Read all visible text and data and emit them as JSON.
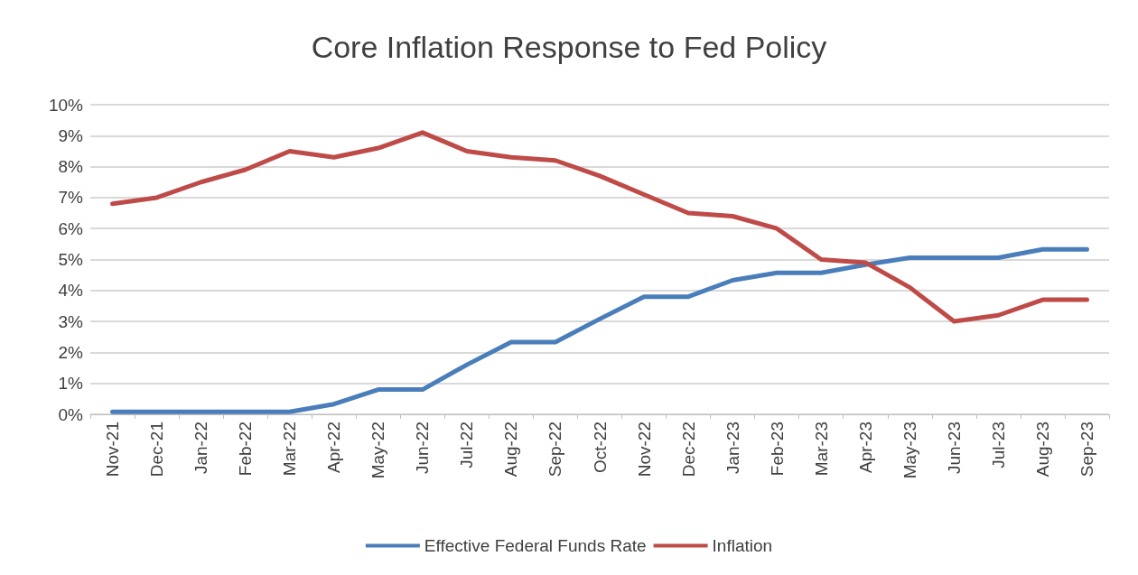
{
  "chart_data": {
    "type": "line",
    "title": "Core Inflation Response to Fed Policy",
    "categories": [
      "Nov-21",
      "Dec-21",
      "Jan-22",
      "Feb-22",
      "Mar-22",
      "Apr-22",
      "May-22",
      "Jun-22",
      "Jul-22",
      "Aug-22",
      "Sep-22",
      "Oct-22",
      "Nov-22",
      "Dec-22",
      "Jan-23",
      "Feb-23",
      "Mar-23",
      "Apr-23",
      "May-23",
      "Jun-23",
      "Jul-23",
      "Aug-23",
      "Sep-23"
    ],
    "series": [
      {
        "name": "Effective Federal Funds Rate",
        "color": "#4a7ebb",
        "values": [
          0.08,
          0.08,
          0.08,
          0.08,
          0.08,
          0.33,
          0.8,
          0.8,
          1.6,
          2.33,
          2.33,
          3.08,
          3.8,
          3.8,
          4.33,
          4.57,
          4.57,
          4.83,
          5.06,
          5.06,
          5.06,
          5.33,
          5.33
        ]
      },
      {
        "name": "Inflation",
        "color": "#be4b48",
        "values": [
          6.8,
          7.0,
          7.5,
          7.9,
          8.5,
          8.3,
          8.6,
          9.1,
          8.5,
          8.3,
          8.2,
          7.7,
          7.1,
          6.5,
          6.4,
          6.0,
          5.0,
          4.9,
          4.1,
          3.0,
          3.2,
          3.7,
          3.7
        ]
      }
    ],
    "ylim": [
      0,
      10
    ],
    "yticks": [
      {
        "value": 0,
        "label": "0%"
      },
      {
        "value": 1,
        "label": "1%"
      },
      {
        "value": 2,
        "label": "2%"
      },
      {
        "value": 3,
        "label": "3%"
      },
      {
        "value": 4,
        "label": "4%"
      },
      {
        "value": 5,
        "label": "5%"
      },
      {
        "value": 6,
        "label": "6%"
      },
      {
        "value": 7,
        "label": "7%"
      },
      {
        "value": 8,
        "label": "8%"
      },
      {
        "value": 9,
        "label": "9%"
      },
      {
        "value": 10,
        "label": "10%"
      }
    ],
    "grid": "y",
    "legend": "bottom",
    "marker": "none",
    "line_style": "solid"
  }
}
